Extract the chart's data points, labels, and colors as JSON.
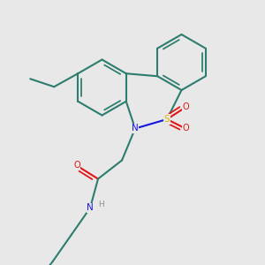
{
  "bg_color": "#e8e8e8",
  "bond_color": "#2d7d6e",
  "N_color": "#1515e0",
  "O_color": "#e01515",
  "S_color": "#d4b800",
  "H_color": "#909090",
  "bond_width": 1.5,
  "dbo": 0.13,
  "figsize": [
    3.0,
    3.0
  ],
  "dpi": 100,
  "xlim": [
    0,
    10
  ],
  "ylim": [
    0,
    10
  ]
}
